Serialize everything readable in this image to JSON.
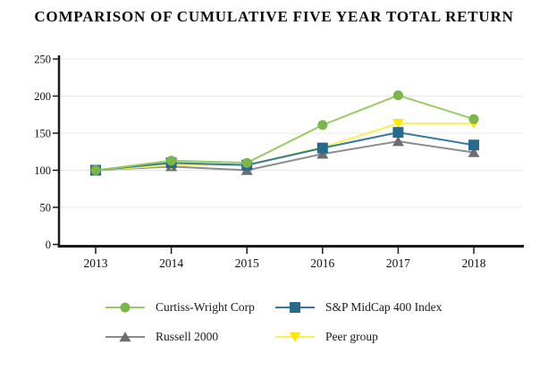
{
  "title": "COMPARISON OF CUMULATIVE FIVE YEAR TOTAL RETURN",
  "colors": {
    "background": "#ffffff",
    "axis": "#1a1a1a",
    "grid": "#e8e8e8",
    "text": "#111111"
  },
  "chart_data": {
    "type": "line",
    "title": "COMPARISON OF CUMULATIVE FIVE YEAR TOTAL RETURN",
    "x": [
      "2013",
      "2014",
      "2015",
      "2016",
      "2017",
      "2018"
    ],
    "xlabel": "",
    "ylabel": "",
    "ylim": [
      0,
      250
    ],
    "yticks": [
      0,
      50,
      100,
      150,
      200,
      250
    ],
    "grid": true,
    "legend_position": "bottom",
    "series": [
      {
        "name": "Curtiss-Wright Corp",
        "marker": "circle",
        "line_color": "#98cc62",
        "marker_color": "#7ab648",
        "values": [
          100,
          113,
          110,
          161,
          201,
          169
        ]
      },
      {
        "name": "S&P MidCap 400 Index",
        "marker": "square",
        "line_color": "#3579a1",
        "marker_color": "#276a8e",
        "values": [
          100,
          110,
          107,
          130,
          151,
          134
        ]
      },
      {
        "name": "Russell 2000",
        "marker": "triangle-up",
        "line_color": "#8b8d90",
        "marker_color": "#6b6d70",
        "values": [
          100,
          105,
          100,
          122,
          139,
          124
        ]
      },
      {
        "name": "Peer group",
        "marker": "triangle-down",
        "line_color": "#faf04f",
        "marker_color": "#fde900",
        "values": [
          100,
          107,
          107,
          131,
          163,
          163
        ]
      }
    ]
  }
}
